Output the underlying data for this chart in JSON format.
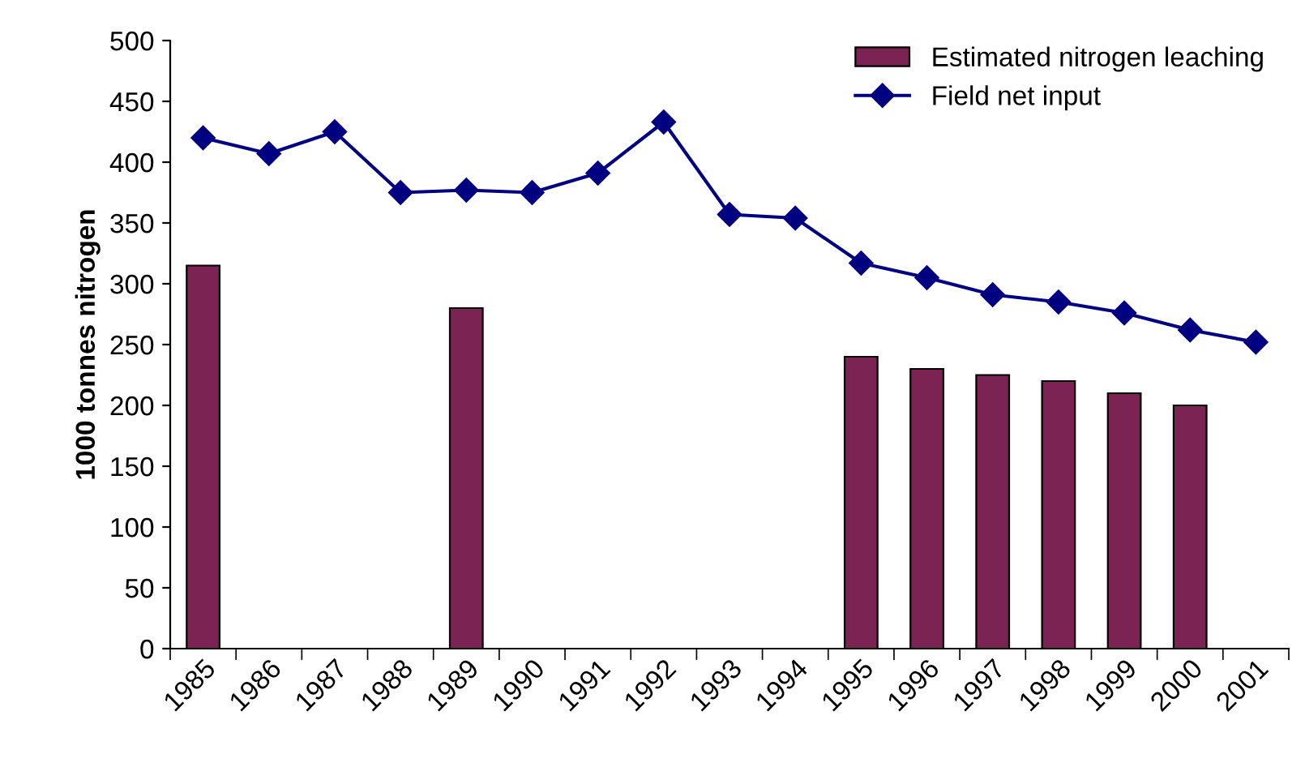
{
  "chart_data": {
    "type": "bar",
    "ylabel": "1000 tonnes nitrogen",
    "categories": [
      "1985",
      "1986",
      "1987",
      "1988",
      "1989",
      "1990",
      "1991",
      "1992",
      "1993",
      "1994",
      "1995",
      "1996",
      "1997",
      "1998",
      "1999",
      "2000",
      "2001"
    ],
    "series": [
      {
        "name": "Estimated nitrogen leaching",
        "color": "#7b2352",
        "values": [
          315,
          null,
          null,
          null,
          280,
          null,
          null,
          null,
          null,
          null,
          240,
          230,
          225,
          220,
          210,
          200,
          null
        ]
      },
      {
        "name": "Field net input",
        "type": "line",
        "color": "#000080",
        "marker": "diamond",
        "values": [
          420,
          407,
          425,
          375,
          377,
          375,
          391,
          433,
          357,
          354,
          317,
          305,
          291,
          285,
          276,
          262,
          252
        ]
      }
    ],
    "ylim": [
      0,
      500
    ],
    "yticks": [
      0,
      50,
      100,
      150,
      200,
      250,
      300,
      350,
      400,
      450,
      500
    ],
    "grid": false,
    "legend": "top right"
  }
}
